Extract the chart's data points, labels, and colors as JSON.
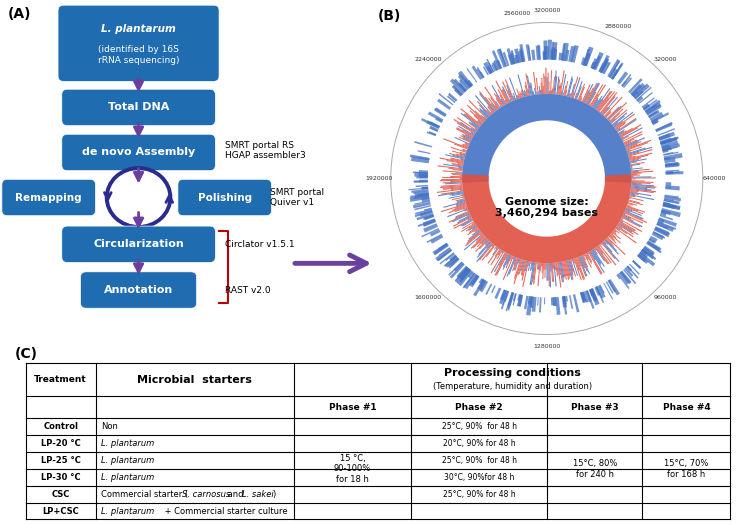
{
  "fig_width": 7.49,
  "fig_height": 5.25,
  "box_color": "#1F6CB0",
  "arrow_color": "#6B3FA0",
  "genome_label": "Genome size:\n3,460,294 bases",
  "phase1_text": "15 °C,\n90-100%\nfor 18 h",
  "phase3_text": "15°C, 80%\nfor 240 h",
  "phase4_text": "15°C, 70%\nfor 168 h",
  "phase2_rows": [
    "25°C, 90%  for 48 h",
    "20°C, 90% for 48 h",
    "25°C, 90%  for 48 h",
    "30°C, 90%for 48 h",
    "25°C, 90% for 48 h",
    ""
  ],
  "treatments": [
    "Control",
    "LP-20 °C",
    "LP-25 °C",
    "LP-30 °C",
    "CSC",
    "LP+CSC"
  ],
  "starters": [
    "Non",
    "L. plantarum",
    "L. plantarum",
    "L. plantarum",
    "Commercial starter (S. carnosus and L. sakei)",
    "L. plantarum + Commercial starter culture"
  ],
  "tick_labels": {
    "3200000": 90,
    "320000": 45,
    "640000": 0,
    "960000": -45,
    "1280000": -90,
    "1600000": -135,
    "1920000": 180,
    "2240000": 135,
    "2560000": 100,
    "2880000": 65
  }
}
